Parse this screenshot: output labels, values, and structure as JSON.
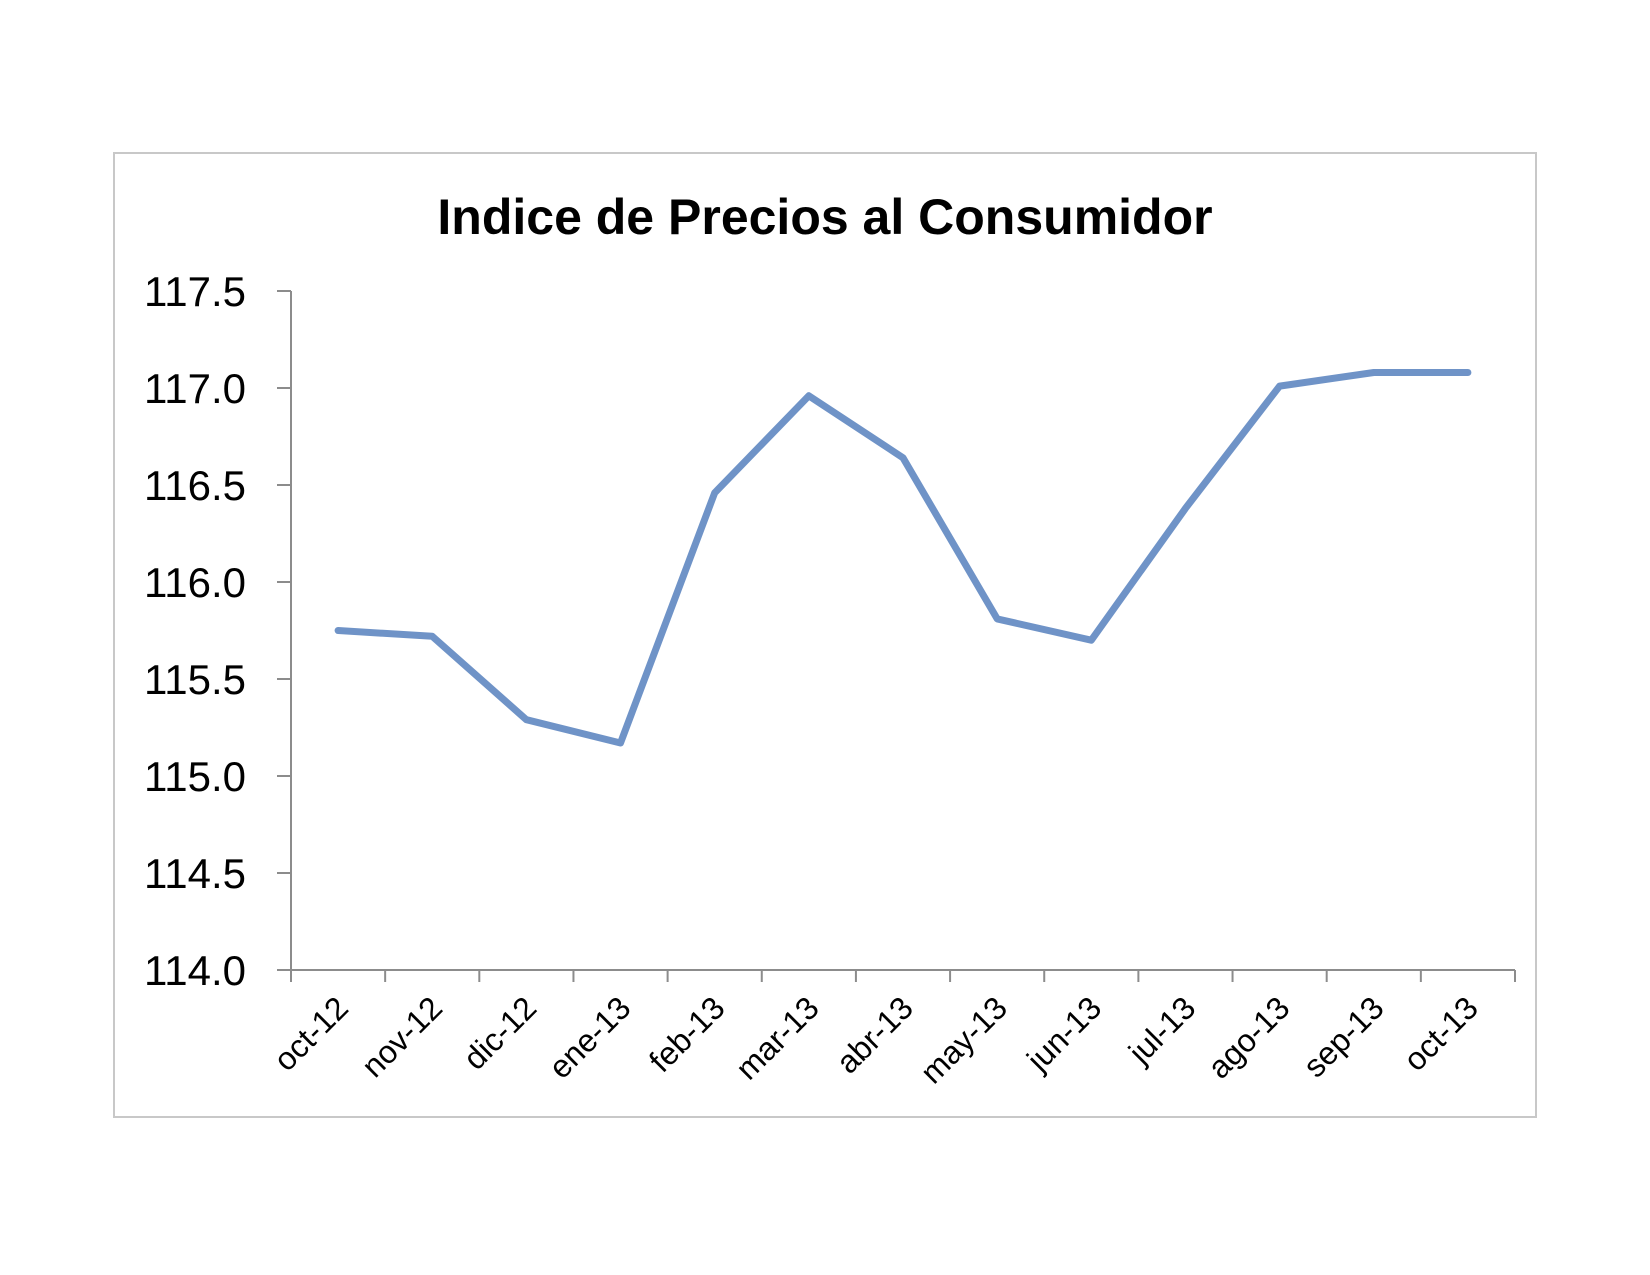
{
  "chart_data": {
    "type": "line",
    "title": "Indice de Precios al Consumidor",
    "xlabel": "",
    "ylabel": "",
    "categories": [
      "oct-12",
      "nov-12",
      "dic-12",
      "ene-13",
      "feb-13",
      "mar-13",
      "abr-13",
      "may-13",
      "jun-13",
      "jul-13",
      "ago-13",
      "sep-13",
      "oct-13"
    ],
    "series": [
      {
        "values": [
          115.75,
          115.72,
          115.29,
          115.17,
          116.46,
          116.96,
          116.64,
          115.81,
          115.7,
          116.38,
          117.01,
          117.08,
          117.08
        ],
        "color": "#6f93c7"
      }
    ],
    "ylim": [
      114.0,
      117.5
    ],
    "yticks": [
      "114.0",
      "114.5",
      "115.0",
      "115.5",
      "116.0",
      "116.5",
      "117.0",
      "117.5"
    ],
    "grid": false,
    "legend": "none"
  }
}
